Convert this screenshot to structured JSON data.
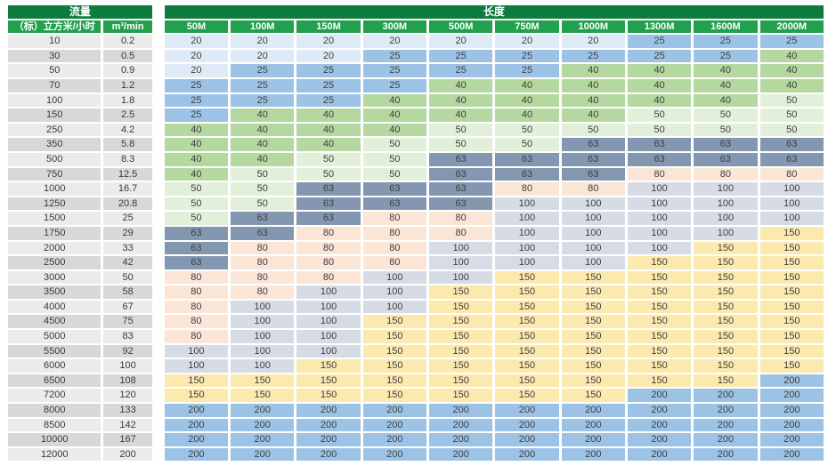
{
  "colors": {
    "page_background": "#FFFFFF",
    "group_header_bg": "#0E7C3C",
    "column_header_bg": "#23A04E",
    "header_text": "#FFFFFF",
    "cell_text": "#3F3F3F",
    "row_label_light": "#EBEBEB",
    "row_label_dark": "#D8D8D8",
    "value_cell_colors": {
      "20": "#DEEBF7",
      "25": "#9CC3E6",
      "40": "#B5D8A0",
      "50": "#E2EFD9",
      "63": "#8497B0",
      "80": "#FBE5D6",
      "100": "#D6DCE5",
      "150": "#FCE9AE",
      "200": "#9CC3E6"
    }
  },
  "chart_data": {
    "type": "table",
    "title": "",
    "column_groups": [
      {
        "label": "流量",
        "span": 2
      },
      {
        "label": "长度",
        "span": 10
      }
    ],
    "columns": [
      "（标）立方米/小时",
      "m³/min",
      "50M",
      "100M",
      "150M",
      "300M",
      "500M",
      "750M",
      "1000M",
      "1300M",
      "1600M",
      "2000M"
    ],
    "rows": [
      [
        10,
        0.2,
        20,
        20,
        20,
        20,
        20,
        20,
        20,
        25,
        25,
        25
      ],
      [
        30,
        0.5,
        20,
        20,
        20,
        25,
        25,
        25,
        25,
        25,
        25,
        40
      ],
      [
        50,
        0.9,
        20,
        25,
        25,
        25,
        25,
        25,
        40,
        40,
        40,
        40
      ],
      [
        70,
        1.2,
        25,
        25,
        25,
        25,
        40,
        40,
        40,
        40,
        40,
        40
      ],
      [
        100,
        1.8,
        25,
        25,
        25,
        40,
        40,
        40,
        40,
        40,
        40,
        50
      ],
      [
        150,
        2.5,
        25,
        40,
        40,
        40,
        40,
        40,
        40,
        50,
        50,
        50
      ],
      [
        250,
        4.2,
        40,
        40,
        40,
        40,
        50,
        50,
        50,
        50,
        50,
        50
      ],
      [
        350,
        5.8,
        40,
        40,
        40,
        50,
        50,
        50,
        63,
        63,
        63,
        63
      ],
      [
        500,
        8.3,
        40,
        40,
        50,
        50,
        63,
        63,
        63,
        63,
        63,
        63
      ],
      [
        750,
        12.5,
        40,
        50,
        50,
        50,
        63,
        63,
        63,
        80,
        80,
        80
      ],
      [
        1000,
        16.7,
        50,
        50,
        63,
        63,
        63,
        80,
        80,
        100,
        100,
        100
      ],
      [
        1250,
        20.8,
        50,
        50,
        63,
        63,
        63,
        100,
        100,
        100,
        100,
        100
      ],
      [
        1500,
        25,
        50,
        63,
        63,
        80,
        80,
        100,
        100,
        100,
        100,
        100
      ],
      [
        1750,
        29,
        63,
        63,
        80,
        80,
        80,
        100,
        100,
        100,
        100,
        150
      ],
      [
        2000,
        33,
        63,
        80,
        80,
        80,
        100,
        100,
        100,
        100,
        150,
        150
      ],
      [
        2500,
        42,
        63,
        80,
        80,
        80,
        100,
        100,
        100,
        150,
        150,
        150
      ],
      [
        3000,
        50,
        80,
        80,
        80,
        100,
        100,
        150,
        150,
        150,
        150,
        150
      ],
      [
        3500,
        58,
        80,
        80,
        100,
        100,
        150,
        150,
        150,
        150,
        150,
        150
      ],
      [
        4000,
        67,
        80,
        100,
        100,
        100,
        150,
        150,
        150,
        150,
        150,
        150
      ],
      [
        4500,
        75,
        80,
        100,
        100,
        150,
        150,
        150,
        150,
        150,
        150,
        150
      ],
      [
        5000,
        83,
        80,
        100,
        100,
        150,
        150,
        150,
        150,
        150,
        150,
        150
      ],
      [
        5500,
        92,
        100,
        100,
        100,
        150,
        150,
        150,
        150,
        150,
        150,
        150
      ],
      [
        6000,
        100,
        100,
        100,
        150,
        150,
        150,
        150,
        150,
        150,
        150,
        150
      ],
      [
        6500,
        108,
        150,
        150,
        150,
        150,
        150,
        150,
        150,
        150,
        150,
        200
      ],
      [
        7200,
        120,
        150,
        150,
        150,
        150,
        150,
        150,
        150,
        200,
        200,
        200
      ],
      [
        8000,
        133,
        200,
        200,
        200,
        200,
        200,
        200,
        200,
        200,
        200,
        200
      ],
      [
        8500,
        142,
        200,
        200,
        200,
        200,
        200,
        200,
        200,
        200,
        200,
        200
      ],
      [
        10000,
        167,
        200,
        200,
        200,
        200,
        200,
        200,
        200,
        200,
        200,
        200
      ],
      [
        12000,
        200,
        200,
        200,
        200,
        200,
        200,
        200,
        200,
        200,
        200,
        200
      ]
    ],
    "layout": {
      "flow_label_columns": 2,
      "length_value_columns": 10,
      "row_label_shading": "alternating-gray",
      "cell_shading": "by-value"
    }
  }
}
